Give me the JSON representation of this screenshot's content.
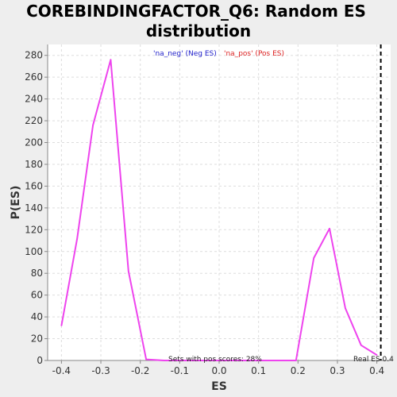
{
  "chart_data": {
    "type": "line",
    "title_lines": [
      "COREBINDINGFACTOR_Q6: Random ES",
      "distribution"
    ],
    "xlabel": "ES",
    "ylabel": "P(ES)",
    "xlim": [
      -0.435,
      0.435
    ],
    "ylim": [
      0,
      290
    ],
    "xticks": [
      -0.4,
      -0.3,
      -0.2,
      -0.1,
      0.0,
      0.1,
      0.2,
      0.3,
      0.4
    ],
    "xtick_labels": [
      "-0.4",
      "-0.3",
      "-0.2",
      "-0.1",
      "0.0",
      "0.1",
      "0.2",
      "0.3",
      "0.4"
    ],
    "yticks": [
      0,
      20,
      40,
      60,
      80,
      100,
      120,
      140,
      160,
      180,
      200,
      220,
      240,
      260,
      280
    ],
    "ytick_labels": [
      "0",
      "20",
      "40",
      "60",
      "80",
      "100",
      "120",
      "140",
      "160",
      "180",
      "200",
      "220",
      "240",
      "260",
      "280"
    ],
    "grid": true,
    "legend_position": "top-center",
    "legend": [
      {
        "label": "'na_neg' (Neg ES)",
        "color": "#2222cc"
      },
      {
        "label": "'na_pos' (Pos ES)",
        "color": "#dd2222"
      }
    ],
    "series": [
      {
        "color": "#ee44ee",
        "x": [
          -0.4,
          -0.36,
          -0.32,
          -0.275,
          -0.23,
          -0.185,
          -0.14,
          -0.1,
          0.0,
          0.1,
          0.195,
          0.24,
          0.28,
          0.32,
          0.36,
          0.4
        ],
        "y": [
          32,
          112,
          216,
          276,
          82,
          1,
          0,
          0,
          0,
          0,
          0,
          94,
          121,
          48,
          14,
          5
        ]
      }
    ],
    "real_es": 0.41,
    "real_es_label": "Real ES 0.4",
    "annotation": "Sets with pos scores: 28%"
  }
}
